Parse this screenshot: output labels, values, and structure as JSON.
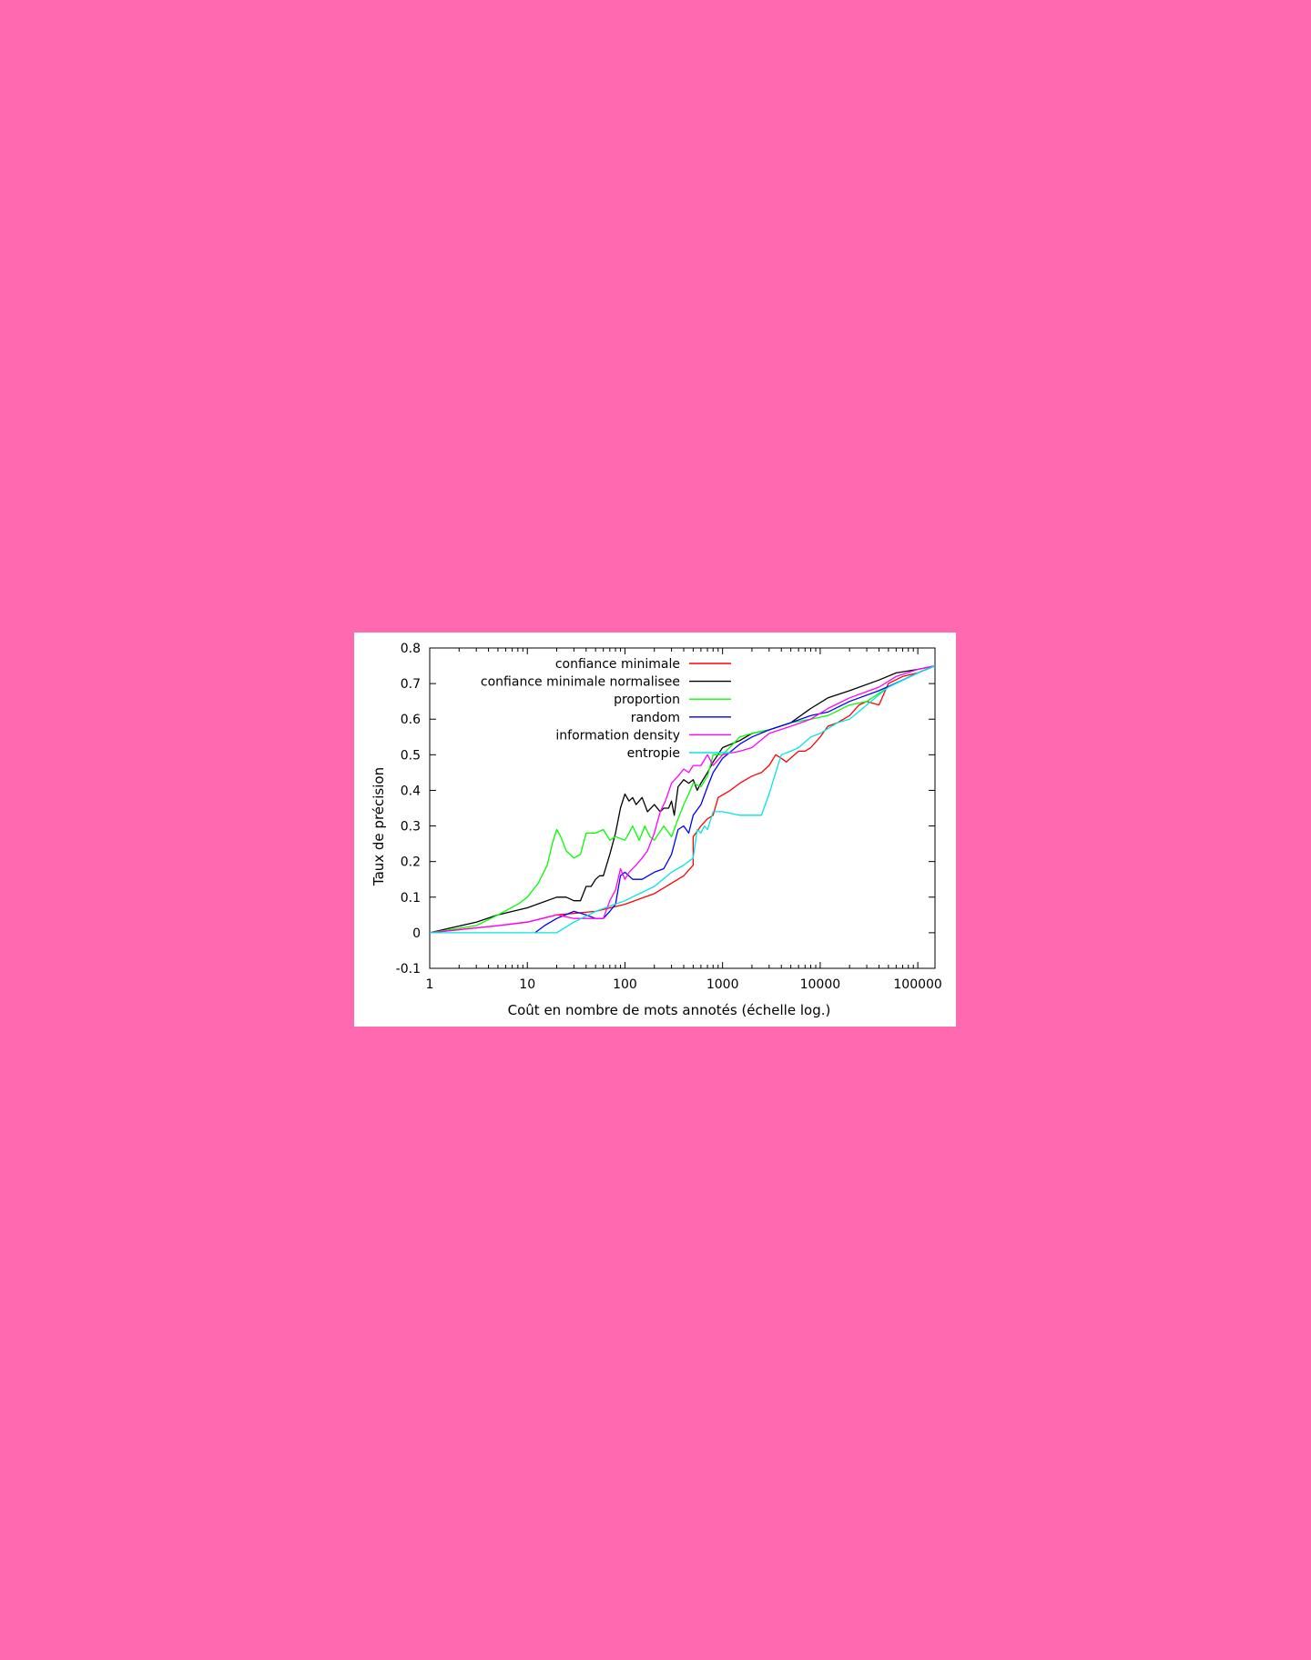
{
  "chart_data": {
    "type": "line",
    "title": "",
    "xlabel": "Coût en nombre de mots annotés (échelle log.)",
    "ylabel": "Taux de précision",
    "xscale": "log",
    "xlim": [
      1,
      150000
    ],
    "ylim": [
      -0.1,
      0.8
    ],
    "xticks": [
      1,
      10,
      100,
      1000,
      10000,
      100000
    ],
    "xtick_labels": [
      "1",
      "10",
      "100",
      "1000",
      "10000",
      "100000"
    ],
    "yticks": [
      -0.1,
      0,
      0.1,
      0.2,
      0.3,
      0.4,
      0.5,
      0.6,
      0.7,
      0.8
    ],
    "ytick_labels": [
      "-0.1",
      "0",
      "0.1",
      "0.2",
      "0.3",
      "0.4",
      "0.5",
      "0.6",
      "0.7",
      "0.8"
    ],
    "grid": false,
    "legend_position": "top-left",
    "series": [
      {
        "name": "confiance minimale",
        "color": "#ff0000",
        "points": [
          [
            1,
            0
          ],
          [
            5,
            0.02
          ],
          [
            10,
            0.03
          ],
          [
            20,
            0.05
          ],
          [
            50,
            0.06
          ],
          [
            100,
            0.08
          ],
          [
            200,
            0.11
          ],
          [
            400,
            0.16
          ],
          [
            500,
            0.19
          ],
          [
            500,
            0.27
          ],
          [
            600,
            0.3
          ],
          [
            700,
            0.32
          ],
          [
            800,
            0.33
          ],
          [
            900,
            0.38
          ],
          [
            1200,
            0.4
          ],
          [
            1500,
            0.42
          ],
          [
            2000,
            0.44
          ],
          [
            2500,
            0.45
          ],
          [
            3000,
            0.47
          ],
          [
            3500,
            0.5
          ],
          [
            4000,
            0.49
          ],
          [
            4500,
            0.48
          ],
          [
            6000,
            0.51
          ],
          [
            7000,
            0.51
          ],
          [
            8000,
            0.52
          ],
          [
            10000,
            0.55
          ],
          [
            12000,
            0.58
          ],
          [
            15000,
            0.59
          ],
          [
            20000,
            0.61
          ],
          [
            25000,
            0.64
          ],
          [
            30000,
            0.65
          ],
          [
            40000,
            0.64
          ],
          [
            50000,
            0.7
          ],
          [
            70000,
            0.72
          ],
          [
            100000,
            0.73
          ],
          [
            150000,
            0.75
          ]
        ]
      },
      {
        "name": "confiance minimale normalisee",
        "color": "#000000",
        "points": [
          [
            1,
            0
          ],
          [
            3,
            0.03
          ],
          [
            5,
            0.05
          ],
          [
            10,
            0.07
          ],
          [
            20,
            0.1
          ],
          [
            25,
            0.1
          ],
          [
            30,
            0.09
          ],
          [
            35,
            0.09
          ],
          [
            40,
            0.13
          ],
          [
            45,
            0.13
          ],
          [
            50,
            0.15
          ],
          [
            55,
            0.16
          ],
          [
            60,
            0.16
          ],
          [
            70,
            0.22
          ],
          [
            80,
            0.28
          ],
          [
            90,
            0.35
          ],
          [
            100,
            0.39
          ],
          [
            110,
            0.37
          ],
          [
            120,
            0.38
          ],
          [
            130,
            0.36
          ],
          [
            150,
            0.38
          ],
          [
            170,
            0.34
          ],
          [
            200,
            0.36
          ],
          [
            230,
            0.34
          ],
          [
            250,
            0.35
          ],
          [
            280,
            0.35
          ],
          [
            300,
            0.37
          ],
          [
            320,
            0.33
          ],
          [
            350,
            0.41
          ],
          [
            400,
            0.43
          ],
          [
            450,
            0.42
          ],
          [
            500,
            0.43
          ],
          [
            550,
            0.4
          ],
          [
            600,
            0.42
          ],
          [
            700,
            0.45
          ],
          [
            800,
            0.48
          ],
          [
            1000,
            0.52
          ],
          [
            1500,
            0.54
          ],
          [
            2000,
            0.56
          ],
          [
            3000,
            0.57
          ],
          [
            5000,
            0.59
          ],
          [
            8000,
            0.63
          ],
          [
            12000,
            0.66
          ],
          [
            20000,
            0.68
          ],
          [
            40000,
            0.71
          ],
          [
            60000,
            0.73
          ],
          [
            100000,
            0.74
          ],
          [
            150000,
            0.75
          ]
        ]
      },
      {
        "name": "proportion",
        "color": "#00ff00",
        "points": [
          [
            1,
            0
          ],
          [
            3,
            0.02
          ],
          [
            5,
            0.05
          ],
          [
            8,
            0.08
          ],
          [
            10,
            0.1
          ],
          [
            13,
            0.14
          ],
          [
            16,
            0.19
          ],
          [
            18,
            0.25
          ],
          [
            20,
            0.29
          ],
          [
            22,
            0.27
          ],
          [
            25,
            0.23
          ],
          [
            30,
            0.21
          ],
          [
            35,
            0.22
          ],
          [
            40,
            0.28
          ],
          [
            50,
            0.28
          ],
          [
            60,
            0.29
          ],
          [
            70,
            0.26
          ],
          [
            80,
            0.27
          ],
          [
            100,
            0.26
          ],
          [
            110,
            0.28
          ],
          [
            120,
            0.3
          ],
          [
            140,
            0.26
          ],
          [
            160,
            0.3
          ],
          [
            180,
            0.27
          ],
          [
            200,
            0.26
          ],
          [
            250,
            0.3
          ],
          [
            300,
            0.27
          ],
          [
            350,
            0.32
          ],
          [
            400,
            0.36
          ],
          [
            450,
            0.39
          ],
          [
            500,
            0.42
          ],
          [
            600,
            0.41
          ],
          [
            700,
            0.44
          ],
          [
            800,
            0.5
          ],
          [
            1000,
            0.5
          ],
          [
            1500,
            0.55
          ],
          [
            2000,
            0.56
          ],
          [
            3000,
            0.57
          ],
          [
            5000,
            0.59
          ],
          [
            8000,
            0.6
          ],
          [
            12000,
            0.61
          ],
          [
            20000,
            0.64
          ],
          [
            30000,
            0.65
          ],
          [
            50000,
            0.69
          ],
          [
            100000,
            0.73
          ],
          [
            150000,
            0.75
          ]
        ]
      },
      {
        "name": "random",
        "color": "#0000ff",
        "points": [
          [
            12,
            0
          ],
          [
            15,
            0.02
          ],
          [
            20,
            0.04
          ],
          [
            30,
            0.06
          ],
          [
            40,
            0.05
          ],
          [
            50,
            0.04
          ],
          [
            60,
            0.04
          ],
          [
            70,
            0.06
          ],
          [
            80,
            0.08
          ],
          [
            90,
            0.16
          ],
          [
            100,
            0.17
          ],
          [
            120,
            0.15
          ],
          [
            150,
            0.15
          ],
          [
            200,
            0.17
          ],
          [
            250,
            0.18
          ],
          [
            300,
            0.22
          ],
          [
            350,
            0.29
          ],
          [
            400,
            0.3
          ],
          [
            450,
            0.28
          ],
          [
            500,
            0.33
          ],
          [
            600,
            0.36
          ],
          [
            700,
            0.41
          ],
          [
            800,
            0.45
          ],
          [
            1000,
            0.49
          ],
          [
            1500,
            0.53
          ],
          [
            2000,
            0.55
          ],
          [
            3000,
            0.57
          ],
          [
            5000,
            0.59
          ],
          [
            8000,
            0.61
          ],
          [
            12000,
            0.62
          ],
          [
            20000,
            0.65
          ],
          [
            40000,
            0.68
          ],
          [
            70000,
            0.71
          ],
          [
            100000,
            0.73
          ],
          [
            150000,
            0.75
          ]
        ]
      },
      {
        "name": "information density",
        "color": "#ff00ff",
        "points": [
          [
            1,
            0
          ],
          [
            5,
            0.02
          ],
          [
            10,
            0.03
          ],
          [
            20,
            0.05
          ],
          [
            30,
            0.04
          ],
          [
            40,
            0.04
          ],
          [
            50,
            0.04
          ],
          [
            60,
            0.04
          ],
          [
            70,
            0.09
          ],
          [
            80,
            0.12
          ],
          [
            90,
            0.18
          ],
          [
            100,
            0.15
          ],
          [
            110,
            0.17
          ],
          [
            130,
            0.19
          ],
          [
            150,
            0.21
          ],
          [
            170,
            0.23
          ],
          [
            200,
            0.28
          ],
          [
            230,
            0.34
          ],
          [
            260,
            0.37
          ],
          [
            300,
            0.42
          ],
          [
            350,
            0.44
          ],
          [
            400,
            0.46
          ],
          [
            450,
            0.45
          ],
          [
            500,
            0.47
          ],
          [
            600,
            0.47
          ],
          [
            700,
            0.5
          ],
          [
            800,
            0.47
          ],
          [
            1000,
            0.5
          ],
          [
            1500,
            0.51
          ],
          [
            2000,
            0.52
          ],
          [
            3000,
            0.56
          ],
          [
            5000,
            0.58
          ],
          [
            8000,
            0.6
          ],
          [
            12000,
            0.63
          ],
          [
            20000,
            0.66
          ],
          [
            40000,
            0.69
          ],
          [
            60000,
            0.72
          ],
          [
            100000,
            0.74
          ],
          [
            150000,
            0.75
          ]
        ]
      },
      {
        "name": "entropie",
        "color": "#00e5e5",
        "points": [
          [
            1,
            0
          ],
          [
            5,
            0
          ],
          [
            10,
            0
          ],
          [
            20,
            0
          ],
          [
            30,
            0.03
          ],
          [
            50,
            0.06
          ],
          [
            100,
            0.09
          ],
          [
            200,
            0.13
          ],
          [
            300,
            0.17
          ],
          [
            400,
            0.19
          ],
          [
            500,
            0.21
          ],
          [
            550,
            0.29
          ],
          [
            600,
            0.28
          ],
          [
            650,
            0.3
          ],
          [
            700,
            0.29
          ],
          [
            800,
            0.34
          ],
          [
            1000,
            0.34
          ],
          [
            1500,
            0.33
          ],
          [
            2000,
            0.33
          ],
          [
            2500,
            0.33
          ],
          [
            3000,
            0.39
          ],
          [
            3500,
            0.45
          ],
          [
            4000,
            0.5
          ],
          [
            5000,
            0.51
          ],
          [
            6000,
            0.52
          ],
          [
            8000,
            0.55
          ],
          [
            10000,
            0.56
          ],
          [
            15000,
            0.59
          ],
          [
            20000,
            0.6
          ],
          [
            30000,
            0.64
          ],
          [
            50000,
            0.69
          ],
          [
            100000,
            0.73
          ],
          [
            150000,
            0.75
          ]
        ]
      }
    ]
  }
}
